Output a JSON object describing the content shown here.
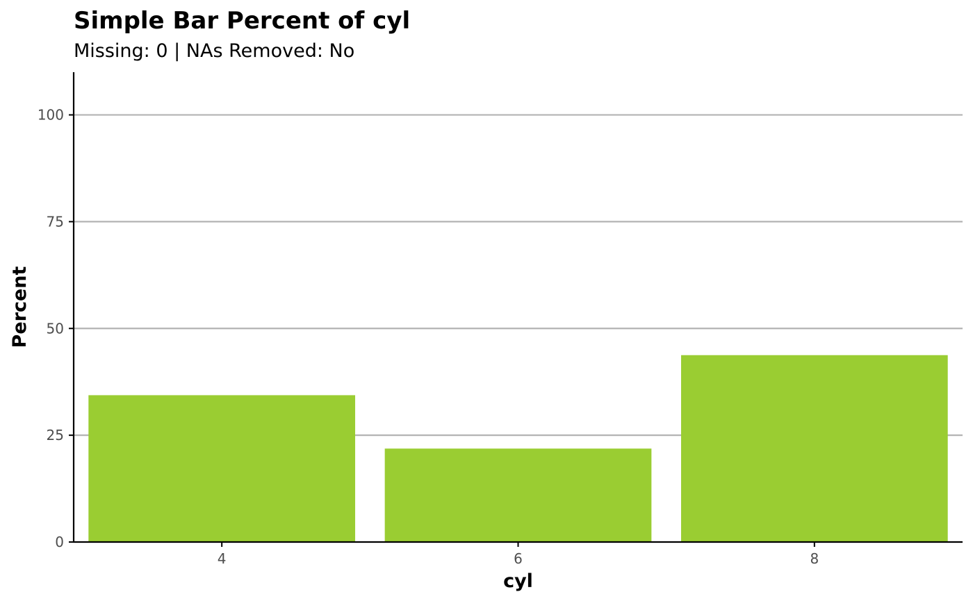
{
  "chart_data": {
    "type": "bar",
    "title": "Simple Bar Percent of cyl",
    "subtitle": "Missing: 0 | NAs Removed: No",
    "xlabel": "cyl",
    "ylabel": "Percent",
    "categories": [
      "4",
      "6",
      "8"
    ],
    "values": [
      34.375,
      21.875,
      43.75
    ],
    "ylim": [
      0,
      110
    ],
    "yticks": [
      0,
      25,
      50,
      75,
      100
    ],
    "grid": "horizontal major",
    "legend": "none",
    "bar_color": "#9ACD32",
    "grid_color": "#B3B3B3",
    "axis_color": "#000000",
    "tick_label_color": "#4D4D4D"
  }
}
